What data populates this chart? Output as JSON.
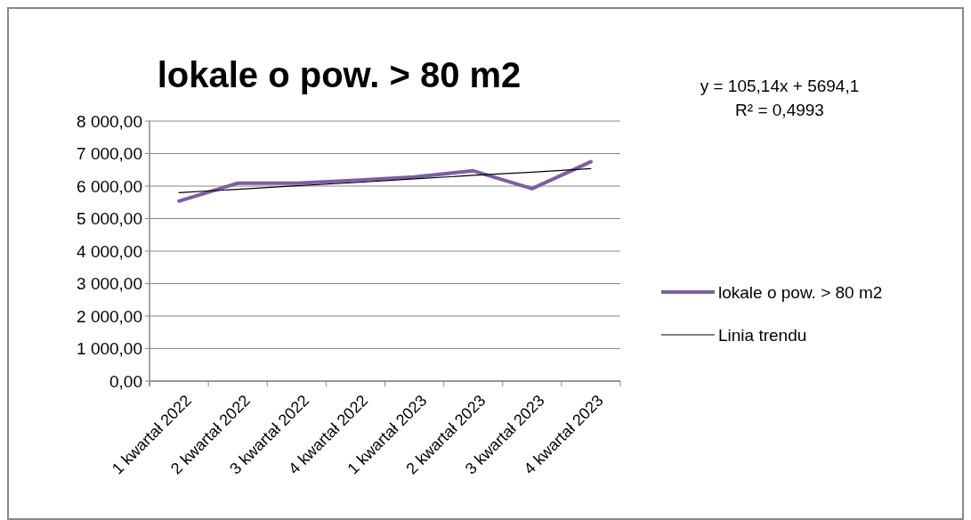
{
  "chart_data": {
    "type": "line",
    "title": "lokale o pow. > 80 m2",
    "categories": [
      "1 kwartał 2022",
      "2 kwartał 2022",
      "3 kwartał 2022",
      "4 kwartał 2022",
      "1 kwartał 2023",
      "2 kwartał 2023",
      "3 kwartał 2023",
      "4 kwartał 2023"
    ],
    "series": [
      {
        "name": "lokale o pow. > 80 m2",
        "color": "#7b5ea7",
        "values": [
          5540,
          6090,
          6090,
          6180,
          6280,
          6470,
          5920,
          6750
        ]
      },
      {
        "name": "Linia trendu",
        "color": "#000000",
        "values": [
          5800,
          5900,
          6010,
          6110,
          6220,
          6330,
          6430,
          6540
        ]
      }
    ],
    "ylim": [
      0,
      8000
    ],
    "yticks": [
      {
        "value": 0,
        "label": "0,00"
      },
      {
        "value": 1000,
        "label": "1 000,00"
      },
      {
        "value": 2000,
        "label": "2 000,00"
      },
      {
        "value": 3000,
        "label": "3 000,00"
      },
      {
        "value": 4000,
        "label": "4 000,00"
      },
      {
        "value": 5000,
        "label": "5 000,00"
      },
      {
        "value": 6000,
        "label": "6 000,00"
      },
      {
        "value": 7000,
        "label": "7 000,00"
      },
      {
        "value": 8000,
        "label": "8 000,00"
      }
    ],
    "grid": "y",
    "legend": "right",
    "annotations": [
      "y = 105,14x + 5694,1",
      "R² = 0,4993"
    ]
  }
}
